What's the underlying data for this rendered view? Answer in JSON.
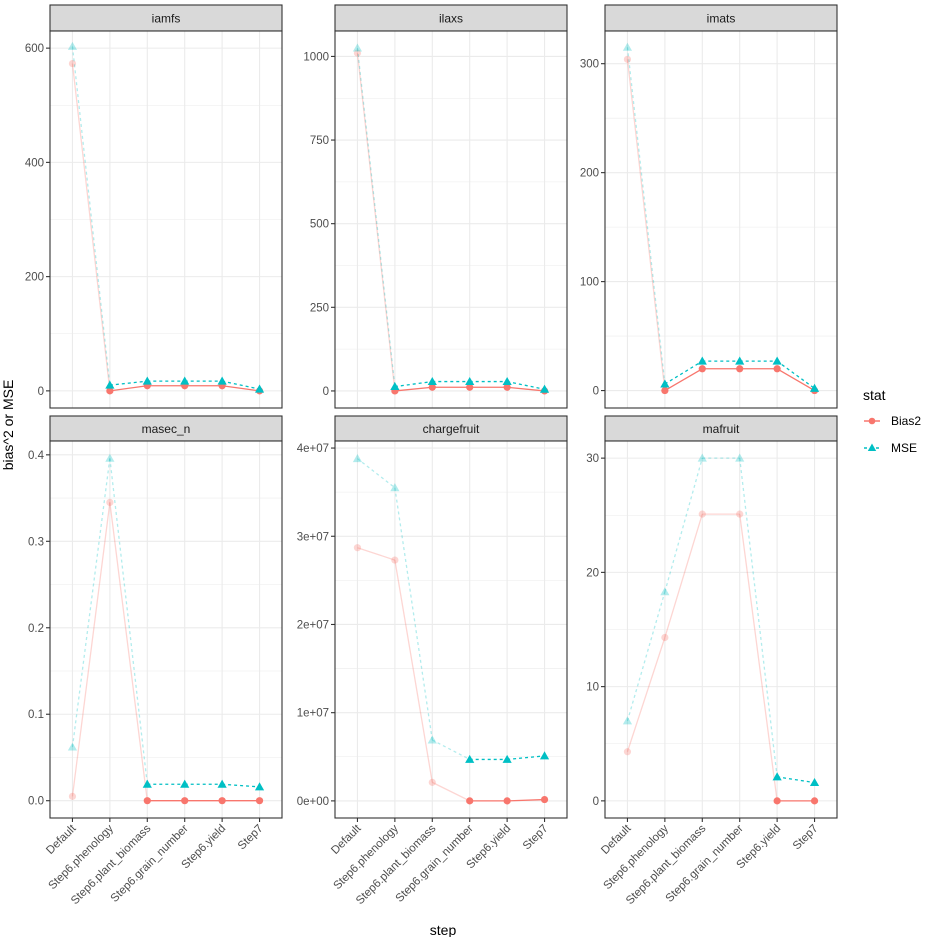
{
  "chart_data": {
    "type": "line",
    "layout": "facet_wrap 2x3, free y scales",
    "xlabel": "step",
    "ylabel": "bias^2 or MSE",
    "categories": [
      "Default",
      "Step6.phenology",
      "Step6.plant_biomass",
      "Step6.grain_number",
      "Step6.yield",
      "Step7"
    ],
    "legend": {
      "title": "stat",
      "placement": "right",
      "entries": [
        {
          "name": "Bias2",
          "color": "#F8766D",
          "shape": "circle",
          "linetype": "solid"
        },
        {
          "name": "MSE",
          "color": "#00BFC4",
          "shape": "triangle",
          "linetype": "dashed"
        }
      ]
    },
    "grid": true,
    "panels": [
      {
        "title": "iamfs",
        "ylim": [
          -30,
          630
        ],
        "yticks": [
          0,
          200,
          400,
          600
        ],
        "ytick_labels": [
          "0",
          "200",
          "400",
          "600"
        ],
        "series": [
          {
            "name": "Bias2",
            "values": [
              573,
              0,
              9,
              9,
              9,
              0
            ],
            "faded": [
              true,
              false,
              false,
              false,
              false,
              false
            ]
          },
          {
            "name": "MSE",
            "values": [
              603,
              10,
              17,
              17,
              17,
              3
            ],
            "faded": [
              true,
              false,
              false,
              false,
              false,
              false
            ]
          }
        ]
      },
      {
        "title": "ilaxs",
        "ylim": [
          -51,
          1076
        ],
        "yticks": [
          0,
          250,
          500,
          750,
          1000
        ],
        "ytick_labels": [
          "0",
          "250",
          "500",
          "750",
          "1000"
        ],
        "series": [
          {
            "name": "Bias2",
            "values": [
              1010,
              0,
              11,
              11,
              11,
              0
            ],
            "faded": [
              true,
              false,
              false,
              false,
              false,
              false
            ]
          },
          {
            "name": "MSE",
            "values": [
              1025,
              13,
              28,
              28,
              28,
              5
            ],
            "faded": [
              true,
              false,
              false,
              false,
              false,
              false
            ]
          }
        ]
      },
      {
        "title": "imats",
        "ylim": [
          -16,
          330
        ],
        "yticks": [
          0,
          100,
          200,
          300
        ],
        "ytick_labels": [
          "0",
          "100",
          "200",
          "300"
        ],
        "series": [
          {
            "name": "Bias2",
            "values": [
              304,
              0,
              20,
              20,
              20,
              0
            ],
            "faded": [
              true,
              false,
              false,
              false,
              false,
              false
            ]
          },
          {
            "name": "MSE",
            "values": [
              315,
              6,
              27,
              27,
              27,
              2
            ],
            "faded": [
              true,
              false,
              false,
              false,
              false,
              false
            ]
          }
        ]
      },
      {
        "title": "masec_n",
        "ylim": [
          -0.02,
          0.416
        ],
        "yticks": [
          0,
          0.1,
          0.2,
          0.3,
          0.4
        ],
        "ytick_labels": [
          "0.0",
          "0.1",
          "0.2",
          "0.3",
          "0.4"
        ],
        "series": [
          {
            "name": "Bias2",
            "values": [
              0.005,
              0.345,
              0,
              0,
              0,
              0
            ],
            "faded": [
              true,
              true,
              false,
              false,
              false,
              false
            ]
          },
          {
            "name": "MSE",
            "values": [
              0.062,
              0.396,
              0.019,
              0.019,
              0.019,
              0.016
            ],
            "faded": [
              true,
              true,
              false,
              false,
              false,
              false
            ]
          }
        ]
      },
      {
        "title": "chargefruit",
        "ylim": [
          -1940000,
          40800000
        ],
        "yticks": [
          0,
          10000000,
          20000000,
          30000000,
          40000000
        ],
        "ytick_labels": [
          "0e+00",
          "1e+07",
          "2e+07",
          "3e+07",
          "4e+07"
        ],
        "series": [
          {
            "name": "Bias2",
            "values": [
              28700000,
              27300000,
              2100000,
              0,
              0,
              150000
            ],
            "faded": [
              true,
              true,
              true,
              false,
              false,
              false
            ]
          },
          {
            "name": "MSE",
            "values": [
              38800000,
              35500000,
              6900000,
              4700000,
              4700000,
              5100000
            ],
            "faded": [
              true,
              true,
              true,
              false,
              false,
              false
            ]
          }
        ]
      },
      {
        "title": "mafruit",
        "ylim": [
          -1.5,
          31.5
        ],
        "yticks": [
          0,
          10,
          20,
          30
        ],
        "ytick_labels": [
          "0",
          "10",
          "20",
          "30"
        ],
        "series": [
          {
            "name": "Bias2",
            "values": [
              4.3,
              14.3,
              25.1,
              25.1,
              0,
              0
            ],
            "faded": [
              true,
              true,
              true,
              true,
              false,
              false
            ]
          },
          {
            "name": "MSE",
            "values": [
              7.0,
              18.3,
              30.0,
              30.0,
              2.1,
              1.6
            ],
            "faded": [
              true,
              true,
              true,
              true,
              false,
              false
            ]
          }
        ]
      }
    ]
  }
}
